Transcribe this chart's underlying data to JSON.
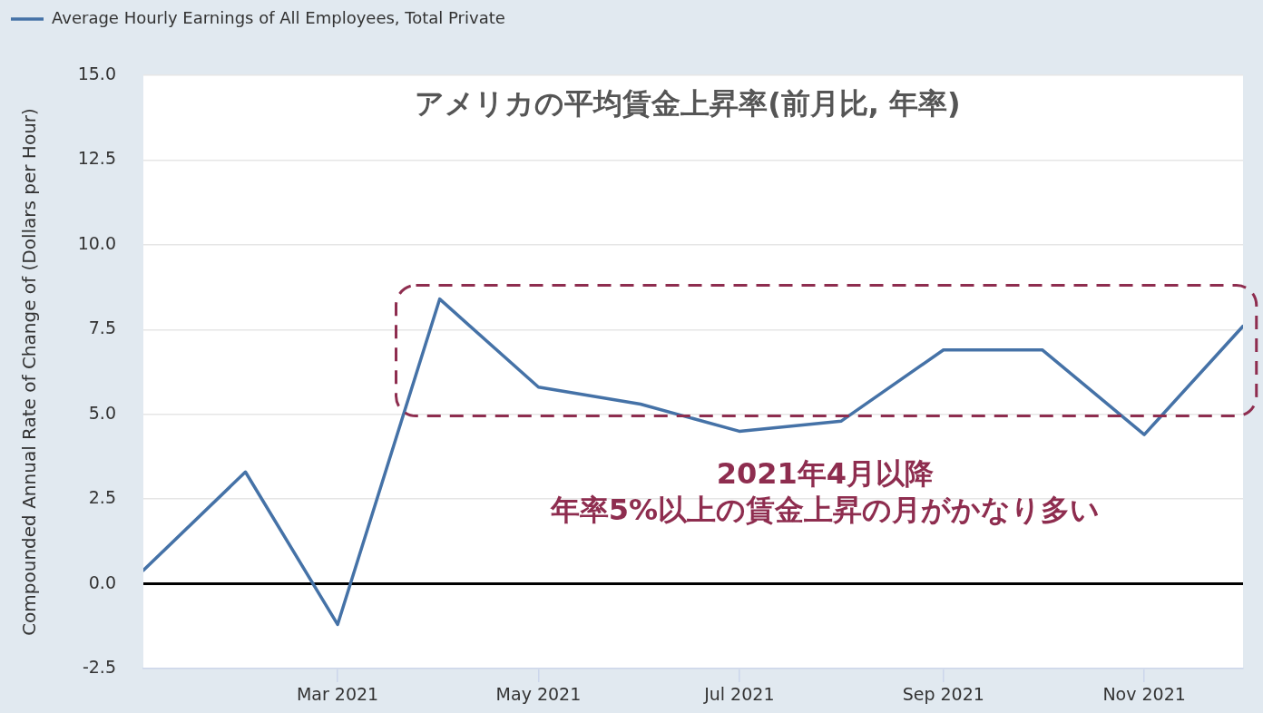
{
  "chart_data": {
    "type": "line",
    "title": "アメリカの平均賃金上昇率(前月比, 年率)",
    "ylabel": "Compounded Annual Rate of Change of (Dollars per Hour)",
    "x": [
      "2021-01",
      "2021-02",
      "2021-03",
      "2021-04",
      "2021-05",
      "2021-06",
      "2021-07",
      "2021-08",
      "2021-09",
      "2021-10",
      "2021-11",
      "2021-12"
    ],
    "series": [
      {
        "name": "Average Hourly Earnings of All Employees, Total Private",
        "color": "#4572a7",
        "values": [
          0.4,
          3.3,
          -1.2,
          8.4,
          5.8,
          5.3,
          4.5,
          4.8,
          6.9,
          6.9,
          4.4,
          7.6
        ]
      }
    ],
    "xlim": [
      "2021-01",
      "2021-12"
    ],
    "xticks": [
      {
        "value": "2021-03",
        "label": "Mar 2021"
      },
      {
        "value": "2021-05",
        "label": "May 2021"
      },
      {
        "value": "2021-07",
        "label": "Jul 2021"
      },
      {
        "value": "2021-09",
        "label": "Sep 2021"
      },
      {
        "value": "2021-11",
        "label": "Nov 2021"
      }
    ],
    "ylim": [
      -2.5,
      15
    ],
    "yticks": [
      -2.5,
      {
        "value": 0,
        "label": "0.0"
      },
      2.5,
      {
        "value": 5,
        "label": "5.0"
      },
      7.5,
      {
        "value": 10,
        "label": "10.0"
      },
      12.5,
      {
        "value": 15,
        "label": "15.0"
      }
    ],
    "ref_lines": [
      {
        "axis": "y",
        "value": 0,
        "color": "#000000"
      }
    ],
    "annotations": [
      "2021年4月以降",
      "年率5%以上の賃金上昇の月がかなり多い"
    ],
    "grid": "y",
    "legend": "top left",
    "marker": "none",
    "line_style": "solid"
  }
}
